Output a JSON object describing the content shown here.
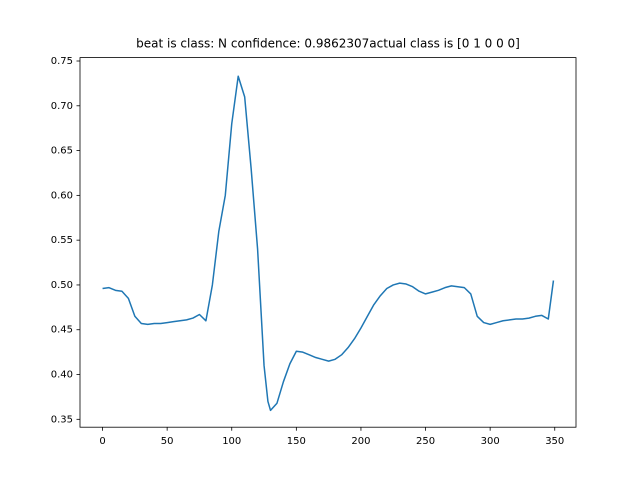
{
  "chart_data": {
    "type": "line",
    "title": "beat is class: N confidence: 0.9862307actual class is [0 1 0 0 0]",
    "x": [
      0,
      5,
      10,
      15,
      20,
      25,
      30,
      35,
      40,
      45,
      50,
      55,
      60,
      65,
      70,
      75,
      80,
      85,
      90,
      95,
      100,
      105,
      110,
      115,
      120,
      125,
      128,
      130,
      135,
      140,
      145,
      150,
      155,
      160,
      165,
      170,
      175,
      180,
      185,
      190,
      195,
      200,
      205,
      210,
      215,
      220,
      225,
      230,
      235,
      240,
      245,
      250,
      255,
      260,
      265,
      270,
      275,
      280,
      285,
      290,
      295,
      300,
      305,
      310,
      315,
      320,
      325,
      330,
      335,
      340,
      345,
      349
    ],
    "series": [
      {
        "color": "#1f77b4",
        "values": [
          0.496,
          0.497,
          0.494,
          0.493,
          0.485,
          0.465,
          0.457,
          0.456,
          0.457,
          0.457,
          0.458,
          0.459,
          0.46,
          0.461,
          0.463,
          0.467,
          0.46,
          0.5,
          0.56,
          0.6,
          0.68,
          0.733,
          0.71,
          0.63,
          0.54,
          0.41,
          0.37,
          0.36,
          0.368,
          0.392,
          0.412,
          0.426,
          0.425,
          0.422,
          0.419,
          0.417,
          0.415,
          0.417,
          0.422,
          0.43,
          0.44,
          0.452,
          0.465,
          0.478,
          0.488,
          0.496,
          0.5,
          0.502,
          0.501,
          0.498,
          0.493,
          0.49,
          0.492,
          0.494,
          0.497,
          0.499,
          0.498,
          0.497,
          0.49,
          0.465,
          0.458,
          0.456,
          0.458,
          0.46,
          0.461,
          0.462,
          0.462,
          0.463,
          0.465,
          0.466,
          0.462,
          0.505
        ]
      }
    ],
    "xlim": [
      -17.45,
      366.45
    ],
    "ylim": [
      0.3412,
      0.7538
    ],
    "xticks": [
      0,
      50,
      100,
      150,
      200,
      250,
      300,
      350
    ],
    "yticks": [
      0.35,
      {
        "value": 0.4,
        "label": "0.40"
      },
      0.45,
      {
        "value": 0.5,
        "label": "0.50"
      },
      0.55,
      {
        "value": 0.6,
        "label": "0.60"
      },
      0.65,
      {
        "value": 0.7,
        "label": "0.70"
      },
      0.75
    ],
    "grid": false
  }
}
